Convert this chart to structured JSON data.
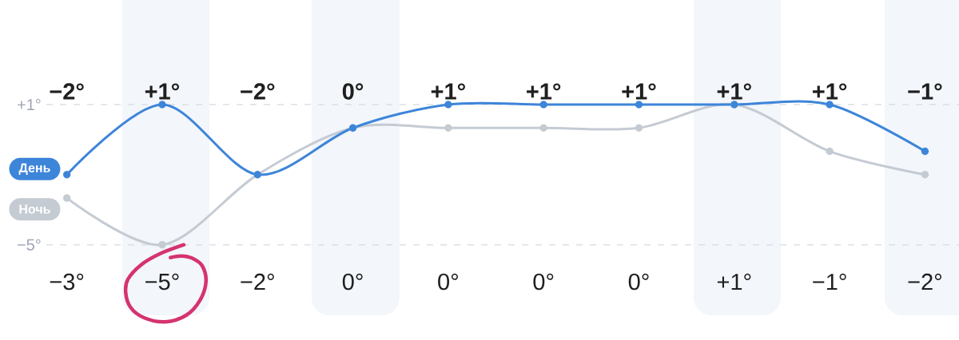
{
  "chart_data": {
    "type": "line",
    "categories": [
      null,
      null,
      null,
      null,
      null,
      null,
      null,
      null,
      null,
      null
    ],
    "series": [
      {
        "name": "День",
        "color": "#3d85d9",
        "values": [
          -2,
          1,
          -2,
          0,
          1,
          1,
          1,
          1,
          1,
          -1
        ],
        "value_labels": [
          "−2°",
          "+1°",
          "−2°",
          "0°",
          "+1°",
          "+1°",
          "+1°",
          "+1°",
          "+1°",
          "−1°"
        ]
      },
      {
        "name": "Ночь",
        "color": "#c5cbd3",
        "values": [
          -3,
          -5,
          -2,
          0,
          0,
          0,
          0,
          1,
          -1,
          -2
        ],
        "value_labels": [
          "−3°",
          "−5°",
          "−2°",
          "0°",
          "0°",
          "0°",
          "0°",
          "+1°",
          "−1°",
          "−2°"
        ]
      }
    ],
    "ylim": [
      -5,
      1
    ],
    "yticks": [
      {
        "value": 1,
        "label": "+1°"
      },
      {
        "value": -5,
        "label": "−5°"
      }
    ],
    "grid": "y",
    "marker": "circle",
    "line_style": "solid"
  }
}
